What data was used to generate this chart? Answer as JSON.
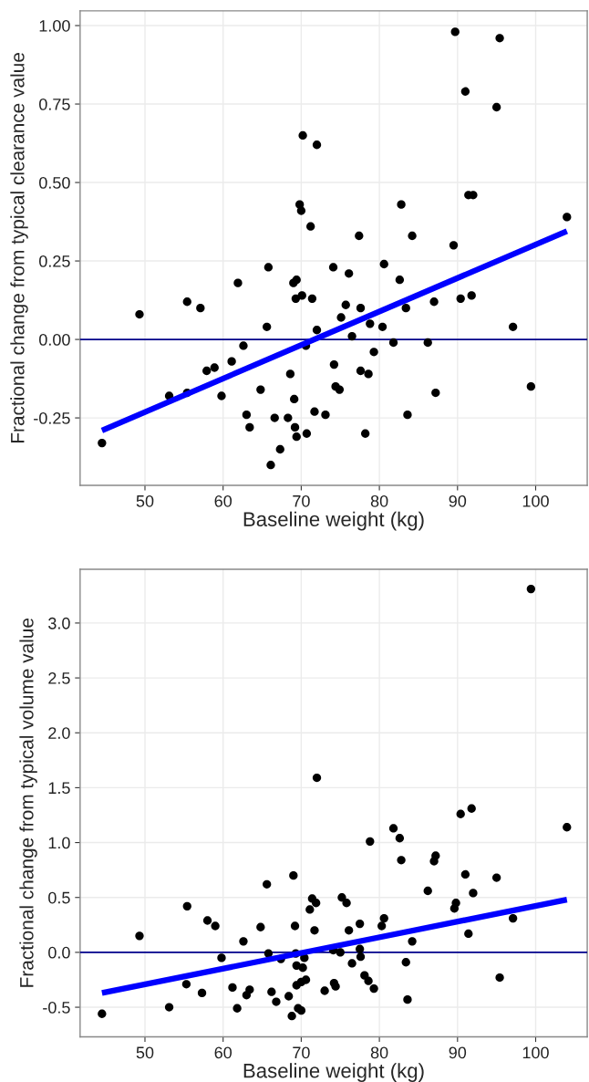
{
  "chart_data": [
    {
      "type": "scatter",
      "xlabel": "Baseline weight (kg)",
      "ylabel": "Fractional change from typical clearance value",
      "xlim": [
        41.7,
        106.6
      ],
      "ylim": [
        -0.465,
        1.047
      ],
      "xticks": [
        50,
        60,
        70,
        80,
        90,
        100
      ],
      "yticks": [
        {
          "value": -0.25,
          "label": "-0.25"
        },
        {
          "value": 0,
          "label": "0.00"
        },
        {
          "value": 0.25,
          "label": "0.25"
        },
        {
          "value": 0.5,
          "label": "0.50"
        },
        {
          "value": 0.75,
          "label": "0.75"
        },
        {
          "value": 1,
          "label": "1.00"
        }
      ],
      "grid": true,
      "series": [
        {
          "marker": "circle",
          "color": "#000000",
          "x": [
            44.5,
            49.3,
            53.1,
            55.4,
            55.4,
            57.1,
            57.9,
            58.9,
            59.8,
            61.1,
            61.9,
            62.6,
            63.0,
            63.4,
            64.8,
            65.6,
            65.8,
            66.1,
            66.6,
            67.3,
            68.3,
            68.6,
            69.0,
            69.1,
            69.2,
            69.3,
            69.4,
            69.4,
            69.8,
            70.0,
            70.1,
            70.2,
            70.6,
            70.7,
            71.2,
            71.4,
            71.7,
            72.0,
            72.0,
            73.1,
            74.1,
            74.2,
            74.4,
            74.9,
            75.1,
            75.7,
            76.1,
            76.5,
            77.4,
            77.6,
            77.6,
            78.2,
            78.6,
            78.8,
            79.3,
            80.4,
            80.6,
            81.8,
            82.6,
            82.8,
            83.4,
            83.6,
            84.2,
            86.2,
            87.0,
            87.2,
            89.5,
            89.7,
            90.4,
            91.0,
            91.4,
            91.8,
            92.0,
            95.0,
            95.4,
            97.1,
            99.4,
            104.0
          ],
          "values": [
            -0.33,
            0.08,
            -0.18,
            0.12,
            -0.17,
            0.1,
            -0.1,
            -0.09,
            -0.18,
            -0.07,
            0.18,
            -0.02,
            -0.24,
            -0.28,
            -0.16,
            0.04,
            0.23,
            -0.4,
            -0.25,
            -0.35,
            -0.25,
            -0.11,
            0.18,
            -0.19,
            -0.28,
            0.13,
            0.19,
            -0.31,
            0.43,
            0.41,
            0.14,
            0.65,
            -0.02,
            -0.3,
            0.36,
            0.13,
            -0.23,
            0.62,
            0.03,
            -0.24,
            0.23,
            -0.08,
            -0.15,
            -0.16,
            0.07,
            0.11,
            0.21,
            0.01,
            0.33,
            0.1,
            -0.1,
            -0.3,
            -0.11,
            0.05,
            -0.04,
            0.04,
            0.24,
            -0.01,
            0.19,
            0.43,
            0.1,
            -0.24,
            0.33,
            -0.01,
            0.12,
            -0.17,
            0.3,
            0.98,
            0.13,
            0.79,
            0.46,
            0.14,
            0.46,
            0.74,
            0.96,
            0.04,
            -0.15,
            0.39
          ]
        },
        {
          "type": "line",
          "color": "#0000ff",
          "x": [
            44.5,
            104.0
          ],
          "values": [
            -0.29,
            0.345
          ]
        }
      ],
      "ref_lines": [
        {
          "axis": "y",
          "value": 0,
          "color": "#00008b"
        }
      ]
    },
    {
      "type": "scatter",
      "xlabel": "Baseline weight (kg)",
      "ylabel": "Fractional change from typical volume value",
      "xlim": [
        41.7,
        106.6
      ],
      "ylim": [
        -0.77,
        3.49
      ],
      "xticks": [
        50,
        60,
        70,
        80,
        90,
        100
      ],
      "yticks": [
        {
          "value": -0.5,
          "label": "-0.5"
        },
        {
          "value": 0,
          "label": "0.0"
        },
        {
          "value": 0.5,
          "label": "0.5"
        },
        {
          "value": 1,
          "label": "1.0"
        },
        {
          "value": 1.5,
          "label": "1.5"
        },
        {
          "value": 2,
          "label": "2.0"
        },
        {
          "value": 2.5,
          "label": "2.5"
        },
        {
          "value": 3,
          "label": "3.0"
        }
      ],
      "grid": true,
      "series": [
        {
          "marker": "circle",
          "color": "#000000",
          "x": [
            44.5,
            49.3,
            53.1,
            55.4,
            55.3,
            57.3,
            58.0,
            59.0,
            59.8,
            61.2,
            61.8,
            62.6,
            63.0,
            63.4,
            64.8,
            65.6,
            65.8,
            66.2,
            66.8,
            67.4,
            68.4,
            68.8,
            69.0,
            69.2,
            69.3,
            69.4,
            69.4,
            69.6,
            70.0,
            70.0,
            70.2,
            70.4,
            70.6,
            71.1,
            71.4,
            71.7,
            71.9,
            72.0,
            73.0,
            74.1,
            74.2,
            74.4,
            75.0,
            75.2,
            75.8,
            76.1,
            76.5,
            77.5,
            77.5,
            77.6,
            78.1,
            78.6,
            78.8,
            79.3,
            80.3,
            80.6,
            81.8,
            82.6,
            82.8,
            83.4,
            83.6,
            84.2,
            86.2,
            87.0,
            87.2,
            89.6,
            89.8,
            90.4,
            91.0,
            91.4,
            91.8,
            92.0,
            95.0,
            95.4,
            97.1,
            99.4,
            104.0
          ],
          "values": [
            -0.56,
            0.15,
            -0.5,
            0.42,
            -0.29,
            -0.37,
            0.29,
            0.24,
            -0.05,
            -0.32,
            -0.51,
            0.1,
            -0.39,
            -0.34,
            0.23,
            0.62,
            -0.01,
            -0.36,
            -0.45,
            -0.06,
            -0.4,
            -0.58,
            0.7,
            0.24,
            -0.01,
            -0.12,
            -0.3,
            -0.51,
            -0.27,
            -0.53,
            -0.14,
            -0.05,
            -0.25,
            0.39,
            0.49,
            0.2,
            0.45,
            1.59,
            -0.35,
            0.02,
            -0.28,
            -0.31,
            0.0,
            0.5,
            0.45,
            0.2,
            -0.1,
            0.26,
            0.03,
            -0.04,
            -0.21,
            -0.26,
            1.01,
            -0.33,
            0.24,
            0.31,
            1.13,
            1.04,
            0.84,
            -0.09,
            -0.43,
            0.1,
            0.56,
            0.83,
            0.88,
            0.4,
            0.45,
            1.26,
            0.71,
            0.17,
            1.31,
            0.54,
            0.68,
            -0.23,
            0.31,
            3.31,
            1.14
          ]
        },
        {
          "type": "line",
          "color": "#0000ff",
          "x": [
            44.5,
            104.0
          ],
          "values": [
            -0.37,
            0.48
          ]
        }
      ],
      "ref_lines": [
        {
          "axis": "y",
          "value": 0,
          "color": "#00008b"
        }
      ]
    }
  ]
}
